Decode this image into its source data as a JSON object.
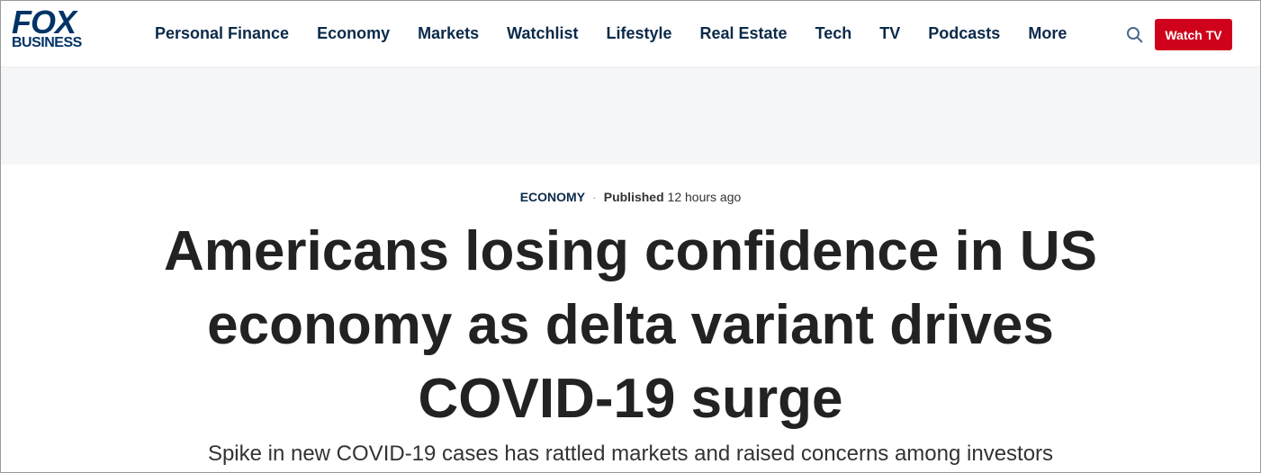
{
  "header": {
    "logo": {
      "line1": "FOX",
      "line2": "BUSINESS"
    },
    "nav": [
      "Personal Finance",
      "Economy",
      "Markets",
      "Watchlist",
      "Lifestyle",
      "Real Estate",
      "Tech",
      "TV",
      "Podcasts",
      "More"
    ],
    "button": "Watch TV"
  },
  "article": {
    "category": "ECONOMY",
    "published_label": "Published",
    "published_time": "12 hours ago",
    "headline": "Americans losing confidence in US economy as delta variant drives COVID-19 surge",
    "subheadline": "Spike in new COVID-19 cases has rattled markets and raised concerns among investors"
  }
}
